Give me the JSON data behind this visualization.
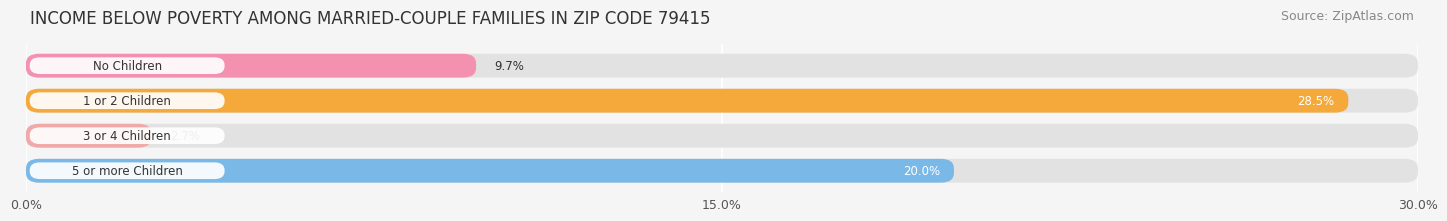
{
  "title": "INCOME BELOW POVERTY AMONG MARRIED-COUPLE FAMILIES IN ZIP CODE 79415",
  "source": "Source: ZipAtlas.com",
  "categories": [
    "No Children",
    "1 or 2 Children",
    "3 or 4 Children",
    "5 or more Children"
  ],
  "values": [
    9.7,
    28.5,
    2.7,
    20.0
  ],
  "bar_colors": [
    "#f490b0",
    "#f5a93a",
    "#f0a8a8",
    "#7ab8e8"
  ],
  "xlim": [
    0,
    30.0
  ],
  "xticks": [
    0.0,
    15.0,
    30.0
  ],
  "xticklabels": [
    "0.0%",
    "15.0%",
    "30.0%"
  ],
  "background_color": "#f5f5f5",
  "bar_bg_color": "#e2e2e2",
  "title_fontsize": 12,
  "source_fontsize": 9,
  "value_label_colors": [
    "#333333",
    "#ffffff",
    "#333333",
    "#ffffff"
  ]
}
